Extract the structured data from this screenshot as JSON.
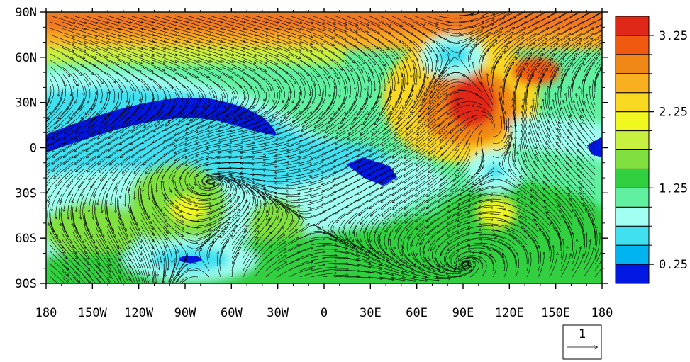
{
  "map": {
    "lon_ticks": [
      "180",
      "150W",
      "120W",
      "90W",
      "60W",
      "30W",
      "0",
      "30E",
      "60E",
      "90E",
      "120E",
      "150E",
      "180"
    ],
    "lat_ticks": [
      "90N",
      "60N",
      "30N",
      "0",
      "30S",
      "60S",
      "90S"
    ],
    "lon_range": [
      -180,
      180
    ],
    "lat_range": [
      -90,
      90
    ]
  },
  "colorbar": {
    "colors": [
      "#0018e0",
      "#00b4f0",
      "#40e0f0",
      "#a0fff0",
      "#60f0a0",
      "#30d040",
      "#80e040",
      "#c8f040",
      "#f0f820",
      "#f8d820",
      "#f8b020",
      "#f08818",
      "#f05a10",
      "#e02818"
    ],
    "labels": [
      "0.25",
      "1.25",
      "2.25",
      "3.25"
    ],
    "label_positions": [
      0.25,
      1.25,
      2.25,
      3.25
    ],
    "range": [
      0,
      3.5
    ]
  },
  "reference_vector": {
    "label": "1",
    "magnitude": 1
  },
  "features": {
    "cyclones": [
      {
        "lon": 85,
        "lat": 62
      },
      {
        "lon": 112,
        "lat": -13
      },
      {
        "lon": -85,
        "lat": -70
      }
    ],
    "high_region": {
      "lon": 88,
      "lat": 32
    },
    "low_bands": [
      {
        "from_lon": -180,
        "to_lon": -35,
        "lat": 15
      },
      {
        "from_lon": 15,
        "to_lon": 40,
        "lat": -12
      }
    ]
  }
}
